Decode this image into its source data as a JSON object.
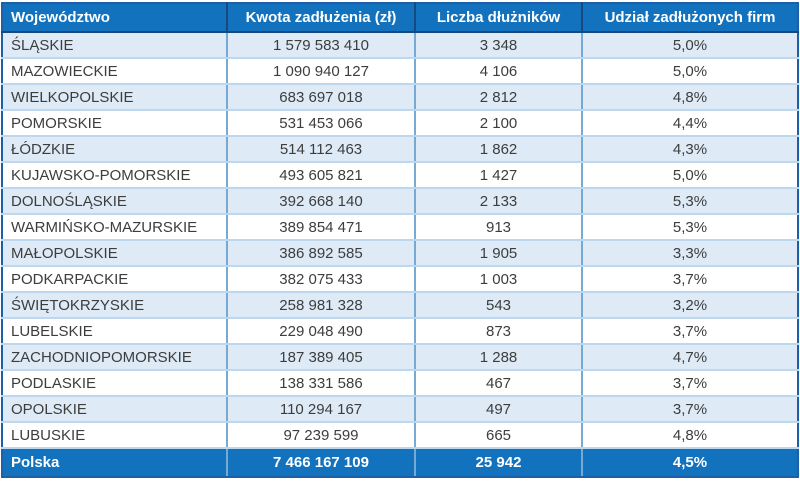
{
  "chart_data": {
    "type": "table",
    "columns": [
      "Województwo",
      "Kwota zadłużenia (zł)",
      "Liczba dłużników",
      "Udział zadłużonych firm"
    ],
    "rows": [
      [
        "ŚLĄSKIE",
        "1 579 583 410",
        "3 348",
        "5,0%"
      ],
      [
        "MAZOWIECKIE",
        "1 090 940 127",
        "4 106",
        "5,0%"
      ],
      [
        "WIELKOPOLSKIE",
        "683 697 018",
        "2 812",
        "4,8%"
      ],
      [
        "POMORSKIE",
        "531 453 066",
        "2 100",
        "4,4%"
      ],
      [
        "ŁÓDZKIE",
        "514 112 463",
        "1 862",
        "4,3%"
      ],
      [
        "KUJAWSKO-POMORSKIE",
        "493 605 821",
        "1 427",
        "5,0%"
      ],
      [
        "DOLNOŚLĄSKIE",
        "392 668 140",
        "2 133",
        "5,3%"
      ],
      [
        "WARMIŃSKO-MAZURSKIE",
        "389 854 471",
        "913",
        "5,3%"
      ],
      [
        "MAŁOPOLSKIE",
        "386 892 585",
        "1 905",
        "3,3%"
      ],
      [
        "PODKARPACKIE",
        "382 075 433",
        "1 003",
        "3,7%"
      ],
      [
        "ŚWIĘTOKRZYSKIE",
        "258 981 328",
        "543",
        "3,2%"
      ],
      [
        "LUBELSKIE",
        "229 048 490",
        "873",
        "3,7%"
      ],
      [
        "ZACHODNIOPOMORSKIE",
        "187 389 405",
        "1 288",
        "4,7%"
      ],
      [
        "PODLASKIE",
        "138 331 586",
        "467",
        "3,7%"
      ],
      [
        "OPOLSKIE",
        "110 294 167",
        "497",
        "3,7%"
      ],
      [
        "LUBUSKIE",
        "97 239 599",
        "665",
        "4,8%"
      ]
    ],
    "footer": [
      "Polska",
      "7 466 167 109",
      "25 942",
      "4,5%"
    ],
    "layout_hints": {
      "row_striping": "odd rows light blue, even rows white",
      "header_position": "top",
      "total_row_position": "bottom",
      "numeric_alignment": "center",
      "region_alignment": "left"
    }
  },
  "colors": {
    "header-bg": "#1272BE",
    "header-border": "#16497E",
    "outer-border": "#1F5FA8",
    "row-alt": "#DEEAF6",
    "row-white": "#FFFFFF",
    "h-divider": "#BDD7EE",
    "v-divider": "#76A9D3",
    "text-dark": "#3D3D3D",
    "text-light": "#FFFFFF"
  }
}
